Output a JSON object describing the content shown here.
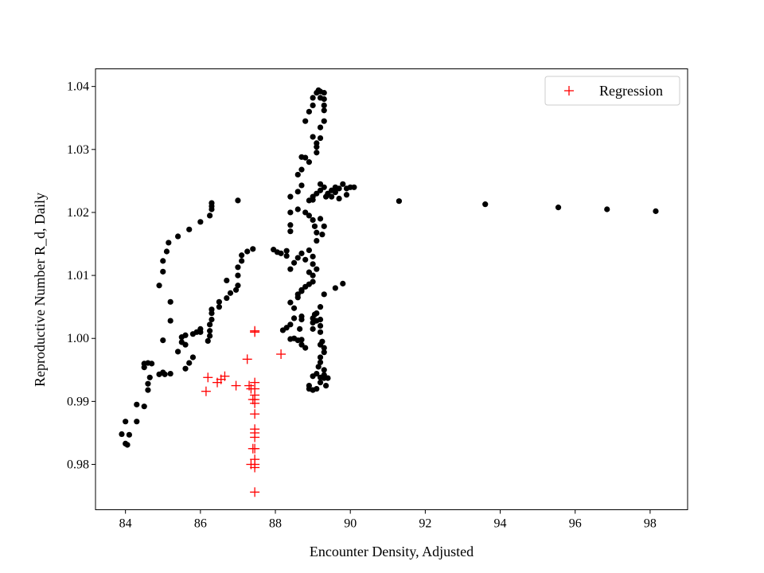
{
  "chart_data": {
    "type": "scatter",
    "title": "",
    "xlabel": "Encounter Density, Adjusted",
    "ylabel": "Reproductive Number R_d, Daily",
    "xlim": [
      83.2,
      99.0
    ],
    "ylim": [
      0.9728,
      1.0428
    ],
    "xticks": [
      84,
      86,
      88,
      90,
      92,
      94,
      96,
      98
    ],
    "yticks": [
      0.98,
      0.99,
      1.0,
      1.01,
      1.02,
      1.03,
      1.04
    ],
    "ytick_labels": [
      "0.98",
      "0.99",
      "1.00",
      "1.01",
      "1.02",
      "1.03",
      "1.04"
    ],
    "grid": false,
    "legend_position": "top-right",
    "colors": {
      "data": "#000000",
      "regression": "#ff0000"
    },
    "series": [
      {
        "marker": "dot",
        "points": [
          [
            83.9,
            0.9848
          ],
          [
            84.0,
            0.9868
          ],
          [
            84.0,
            0.9833
          ],
          [
            84.05,
            0.9831
          ],
          [
            84.1,
            0.9847
          ],
          [
            84.3,
            0.9868
          ],
          [
            84.3,
            0.9895
          ],
          [
            84.5,
            0.9892
          ],
          [
            84.5,
            0.996
          ],
          [
            84.5,
            0.9954
          ],
          [
            84.6,
            0.9961
          ],
          [
            84.6,
            0.9918
          ],
          [
            84.6,
            0.9928
          ],
          [
            84.65,
            0.9938
          ],
          [
            84.7,
            0.996
          ],
          [
            84.9,
            0.9943
          ],
          [
            85.0,
            0.9946
          ],
          [
            85.05,
            0.9943
          ],
          [
            85.2,
            0.9944
          ],
          [
            85.0,
            0.9997
          ],
          [
            85.2,
            1.0028
          ],
          [
            85.2,
            1.0058
          ],
          [
            84.9,
            1.0084
          ],
          [
            85.0,
            1.0106
          ],
          [
            85.0,
            1.0123
          ],
          [
            85.1,
            1.0138
          ],
          [
            85.15,
            1.0152
          ],
          [
            85.4,
            1.0162
          ],
          [
            85.7,
            1.0173
          ],
          [
            86.0,
            1.0185
          ],
          [
            86.25,
            1.0195
          ],
          [
            86.3,
            1.0205
          ],
          [
            86.3,
            1.021
          ],
          [
            86.3,
            1.0215
          ],
          [
            87.0,
            1.0219
          ],
          [
            85.4,
            0.9979
          ],
          [
            85.5,
            0.9994
          ],
          [
            85.5,
            1.0002
          ],
          [
            85.6,
            0.999
          ],
          [
            85.6,
            1.0005
          ],
          [
            85.6,
            0.9952
          ],
          [
            85.7,
            0.9961
          ],
          [
            85.8,
            0.997
          ],
          [
            85.8,
            1.0007
          ],
          [
            85.9,
            1.001
          ],
          [
            86.0,
            1.001
          ],
          [
            86.0,
            1.0015
          ],
          [
            86.2,
            0.9996
          ],
          [
            86.25,
            1.0004
          ],
          [
            86.25,
            1.0012
          ],
          [
            86.25,
            1.0022
          ],
          [
            86.3,
            1.003
          ],
          [
            86.3,
            1.004
          ],
          [
            86.3,
            1.0046
          ],
          [
            86.5,
            1.005
          ],
          [
            86.5,
            1.0058
          ],
          [
            86.7,
            1.0064
          ],
          [
            86.8,
            1.0072
          ],
          [
            86.7,
            1.0092
          ],
          [
            87.0,
            1.01
          ],
          [
            86.95,
            1.0077
          ],
          [
            87.0,
            1.0113
          ],
          [
            87.1,
            1.0123
          ],
          [
            87.1,
            1.0132
          ],
          [
            87.25,
            1.0138
          ],
          [
            87.4,
            1.0142
          ],
          [
            87.0,
            1.0084
          ],
          [
            87.95,
            1.0141
          ],
          [
            88.05,
            1.0137
          ],
          [
            88.15,
            1.0135
          ],
          [
            88.3,
            1.0131
          ],
          [
            88.3,
            1.0139
          ],
          [
            88.2,
            1.0013
          ],
          [
            88.3,
            1.0017
          ],
          [
            88.4,
            1.0022
          ],
          [
            88.5,
            1.0032
          ],
          [
            88.4,
            0.9999
          ],
          [
            88.5,
            1.0
          ],
          [
            88.7,
            0.9998
          ],
          [
            88.6,
            0.9997
          ],
          [
            88.7,
            0.999
          ],
          [
            88.8,
            0.9985
          ],
          [
            88.65,
            1.0015
          ],
          [
            88.7,
            1.003
          ],
          [
            88.7,
            1.0035
          ],
          [
            88.4,
            1.0057
          ],
          [
            88.5,
            1.0048
          ],
          [
            88.6,
            1.0065
          ],
          [
            88.7,
            1.0077
          ],
          [
            88.8,
            1.0082
          ],
          [
            88.9,
            1.0086
          ],
          [
            89.0,
            1.009
          ],
          [
            88.6,
            1.007
          ],
          [
            88.7,
            1.0075
          ],
          [
            89.0,
            1.0015
          ],
          [
            89.0,
            1.0025
          ],
          [
            89.0,
            1.0032
          ],
          [
            89.05,
            1.0038
          ],
          [
            89.1,
            1.0028
          ],
          [
            89.2,
            1.001
          ],
          [
            89.2,
            1.003
          ],
          [
            89.2,
            0.999
          ],
          [
            89.2,
            1.002
          ],
          [
            89.15,
            0.9955
          ],
          [
            89.2,
            0.9962
          ],
          [
            89.2,
            0.997
          ],
          [
            89.3,
            0.9978
          ],
          [
            89.3,
            0.9985
          ],
          [
            89.25,
            0.9995
          ],
          [
            89.3,
            0.995
          ],
          [
            89.3,
            0.9942
          ],
          [
            89.3,
            0.9937
          ],
          [
            89.4,
            0.9937
          ],
          [
            89.35,
            0.9925
          ],
          [
            89.1,
            0.9944
          ],
          [
            89.0,
            0.994
          ],
          [
            88.9,
            0.9925
          ],
          [
            88.9,
            0.992
          ],
          [
            89.0,
            0.9918
          ],
          [
            89.1,
            0.992
          ],
          [
            89.2,
            0.993
          ],
          [
            89.2,
            0.9938
          ],
          [
            89.1,
            1.004
          ],
          [
            89.2,
            1.005
          ],
          [
            89.3,
            1.007
          ],
          [
            89.6,
            1.008
          ],
          [
            89.8,
            1.0087
          ],
          [
            88.4,
            1.011
          ],
          [
            88.5,
            1.012
          ],
          [
            88.6,
            1.0128
          ],
          [
            88.7,
            1.0135
          ],
          [
            88.8,
            1.0125
          ],
          [
            88.9,
            1.014
          ],
          [
            89.0,
            1.013
          ],
          [
            89.0,
            1.0118
          ],
          [
            89.1,
            1.011
          ],
          [
            89.0,
            1.01
          ],
          [
            88.9,
            1.0105
          ],
          [
            88.4,
            1.017
          ],
          [
            88.4,
            1.018
          ],
          [
            88.4,
            1.02
          ],
          [
            88.6,
            1.0205
          ],
          [
            88.8,
            1.02
          ],
          [
            88.9,
            1.0195
          ],
          [
            89.0,
            1.0188
          ],
          [
            89.05,
            1.0178
          ],
          [
            89.1,
            1.0168
          ],
          [
            89.1,
            1.0155
          ],
          [
            89.25,
            1.0165
          ],
          [
            89.3,
            1.0178
          ],
          [
            89.2,
            1.019
          ],
          [
            89.0,
            1.022
          ],
          [
            89.1,
            1.023
          ],
          [
            89.2,
            1.0235
          ],
          [
            89.2,
            1.0245
          ],
          [
            89.3,
            1.024
          ],
          [
            89.35,
            1.0225
          ],
          [
            89.4,
            1.023
          ],
          [
            89.5,
            1.0235
          ],
          [
            89.6,
            1.024
          ],
          [
            89.7,
            1.0238
          ],
          [
            89.8,
            1.0245
          ],
          [
            89.9,
            1.0238
          ],
          [
            90.0,
            1.024
          ],
          [
            90.1,
            1.024
          ],
          [
            89.5,
            1.0225
          ],
          [
            89.7,
            1.0222
          ],
          [
            89.9,
            1.0228
          ],
          [
            89.6,
            1.0232
          ],
          [
            88.4,
            1.0225
          ],
          [
            88.6,
            1.0233
          ],
          [
            88.7,
            1.0243
          ],
          [
            88.6,
            1.026
          ],
          [
            88.7,
            1.0268
          ],
          [
            88.9,
            1.028
          ],
          [
            88.7,
            1.0288
          ],
          [
            88.8,
            1.0287
          ],
          [
            89.1,
            1.0295
          ],
          [
            89.1,
            1.0304
          ],
          [
            89.1,
            1.031
          ],
          [
            89.0,
            1.032
          ],
          [
            89.2,
            1.0318
          ],
          [
            89.2,
            1.0335
          ],
          [
            88.8,
            1.0345
          ],
          [
            89.3,
            1.0345
          ],
          [
            88.9,
            1.036
          ],
          [
            89.3,
            1.0362
          ],
          [
            89.0,
            1.037
          ],
          [
            89.3,
            1.037
          ],
          [
            89.0,
            1.0382
          ],
          [
            89.2,
            1.0382
          ],
          [
            89.3,
            1.038
          ],
          [
            89.1,
            1.039
          ],
          [
            89.2,
            1.0392
          ],
          [
            89.3,
            1.039
          ],
          [
            89.15,
            1.0394
          ],
          [
            88.9,
            1.0219
          ],
          [
            89.0,
            1.0225
          ],
          [
            91.3,
            1.0218
          ],
          [
            93.6,
            1.0213
          ],
          [
            95.55,
            1.0208
          ],
          [
            96.85,
            1.0205
          ],
          [
            98.15,
            1.0202
          ]
        ]
      },
      {
        "name": "Regression",
        "marker": "plus",
        "points": [
          [
            86.15,
            0.9916
          ],
          [
            86.2,
            0.9938
          ],
          [
            86.45,
            0.993
          ],
          [
            86.55,
            0.9935
          ],
          [
            86.65,
            0.994
          ],
          [
            86.95,
            0.9925
          ],
          [
            87.25,
            0.9967
          ],
          [
            87.3,
            0.9925
          ],
          [
            88.15,
            0.9975
          ],
          [
            87.45,
            1.0012
          ],
          [
            87.45,
            1.001
          ],
          [
            87.45,
            0.993
          ],
          [
            87.45,
            0.992
          ],
          [
            87.45,
            0.991
          ],
          [
            87.45,
            0.9903
          ],
          [
            87.45,
            0.9897
          ],
          [
            87.45,
            0.988
          ],
          [
            87.45,
            0.9856
          ],
          [
            87.45,
            0.985
          ],
          [
            87.45,
            0.9843
          ],
          [
            87.45,
            0.9825
          ],
          [
            87.45,
            0.9808
          ],
          [
            87.45,
            0.98
          ],
          [
            87.45,
            0.9795
          ],
          [
            87.45,
            0.9756
          ],
          [
            87.35,
            0.992
          ],
          [
            87.4,
            0.9903
          ],
          [
            87.4,
            0.9825
          ],
          [
            87.35,
            0.98
          ]
        ]
      }
    ]
  }
}
